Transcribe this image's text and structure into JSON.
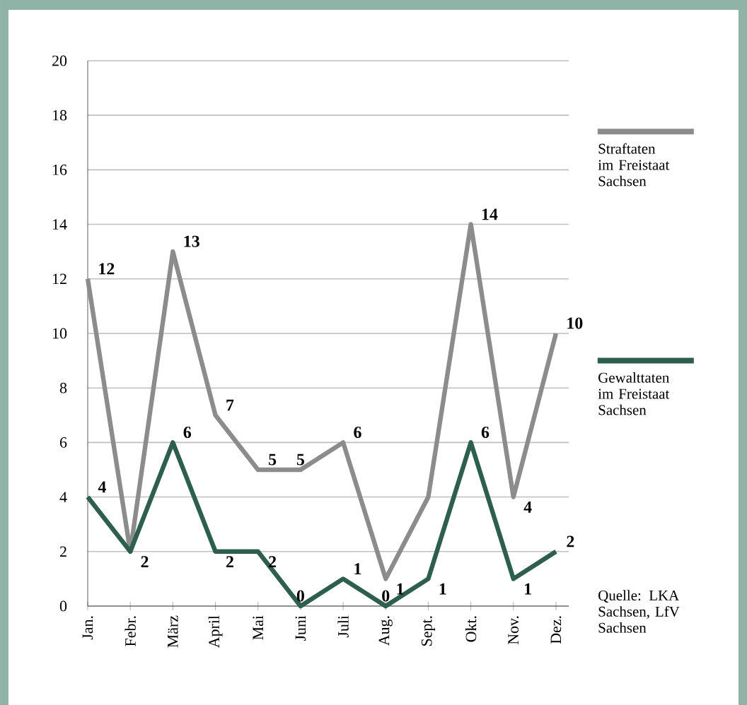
{
  "chart_data": {
    "type": "line",
    "categories": [
      "Jan.",
      "Febr.",
      "März",
      "April",
      "Mai",
      "Juni",
      "Juli",
      "Aug.",
      "Sept.",
      "Okt.",
      "Nov.",
      "Dez."
    ],
    "series": [
      {
        "name": "Straftaten im Freistaat Sachsen",
        "color": "#8c8c8c",
        "values": [
          12,
          2,
          13,
          7,
          5,
          5,
          6,
          1,
          4,
          14,
          4,
          10
        ],
        "value_labels": [
          "12",
          null,
          "13",
          "7",
          "5",
          "5",
          "6",
          "1",
          null,
          "14",
          "4",
          "10"
        ]
      },
      {
        "name": "Gewalttaten im Freistaat Sachsen",
        "color": "#2e5e4e",
        "values": [
          4,
          2,
          6,
          2,
          2,
          0,
          1,
          0,
          1,
          6,
          1,
          2
        ],
        "value_labels": [
          "4",
          "2",
          "6",
          "2",
          "2",
          "0",
          "1",
          "0",
          "1",
          "6",
          "1",
          "2"
        ]
      }
    ],
    "ylim": [
      0,
      20
    ],
    "yticks": [
      0,
      2,
      4,
      6,
      8,
      10,
      12,
      14,
      16,
      18,
      20
    ],
    "grid": "y",
    "legend": "right",
    "line_style": "solid",
    "marker": "none",
    "annotations": [
      "Quelle: LKA Sachsen, LfV Sachsen"
    ]
  }
}
